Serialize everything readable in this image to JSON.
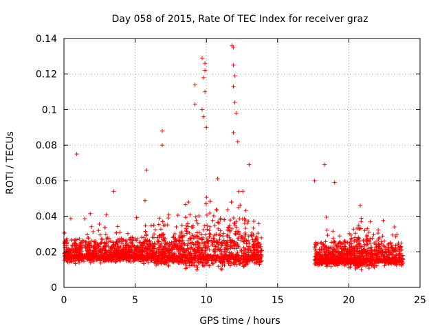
{
  "chart_data": {
    "type": "scatter",
    "title": "Day 058 of 2015, Rate Of TEC Index for receiver graz",
    "xlabel": "GPS time / hours",
    "ylabel": "ROTI / TECUs",
    "xlim": [
      0,
      25
    ],
    "ylim": [
      0,
      0.14
    ],
    "xticks": [
      0,
      5,
      10,
      15,
      20,
      25
    ],
    "xtick_labels": [
      "0",
      "5",
      "10",
      "15",
      "20",
      "25"
    ],
    "yticks": [
      0,
      0.02,
      0.04,
      0.06,
      0.08,
      0.1,
      0.12,
      0.14
    ],
    "ytick_labels": [
      "0",
      "0.02",
      "0.04",
      "0.06",
      "0.08",
      "0.1",
      "0.12",
      "0.14"
    ],
    "grid": true,
    "marker": "plus",
    "color": "#ff0000",
    "data_segments": [
      {
        "x_start": 0.0,
        "x_end": 13.9,
        "baseline": 0.018
      },
      {
        "x_start": 17.6,
        "x_end": 23.8,
        "baseline": 0.016
      }
    ],
    "notable_points": [
      {
        "x": 0.9,
        "y": 0.075
      },
      {
        "x": 3.5,
        "y": 0.054
      },
      {
        "x": 5.8,
        "y": 0.066
      },
      {
        "x": 6.9,
        "y": 0.088
      },
      {
        "x": 6.9,
        "y": 0.08
      },
      {
        "x": 9.2,
        "y": 0.114
      },
      {
        "x": 9.2,
        "y": 0.103
      },
      {
        "x": 9.7,
        "y": 0.129
      },
      {
        "x": 9.9,
        "y": 0.126
      },
      {
        "x": 9.9,
        "y": 0.122
      },
      {
        "x": 9.8,
        "y": 0.118
      },
      {
        "x": 9.9,
        "y": 0.11
      },
      {
        "x": 9.7,
        "y": 0.1
      },
      {
        "x": 9.8,
        "y": 0.096
      },
      {
        "x": 10.0,
        "y": 0.09
      },
      {
        "x": 11.8,
        "y": 0.136
      },
      {
        "x": 11.9,
        "y": 0.135
      },
      {
        "x": 11.9,
        "y": 0.125
      },
      {
        "x": 12.0,
        "y": 0.119
      },
      {
        "x": 11.9,
        "y": 0.113
      },
      {
        "x": 12.0,
        "y": 0.104
      },
      {
        "x": 12.1,
        "y": 0.098
      },
      {
        "x": 11.9,
        "y": 0.087
      },
      {
        "x": 12.2,
        "y": 0.082
      },
      {
        "x": 13.0,
        "y": 0.069
      },
      {
        "x": 17.6,
        "y": 0.06
      },
      {
        "x": 18.3,
        "y": 0.069
      },
      {
        "x": 19.0,
        "y": 0.059
      },
      {
        "x": 20.8,
        "y": 0.046
      }
    ]
  }
}
